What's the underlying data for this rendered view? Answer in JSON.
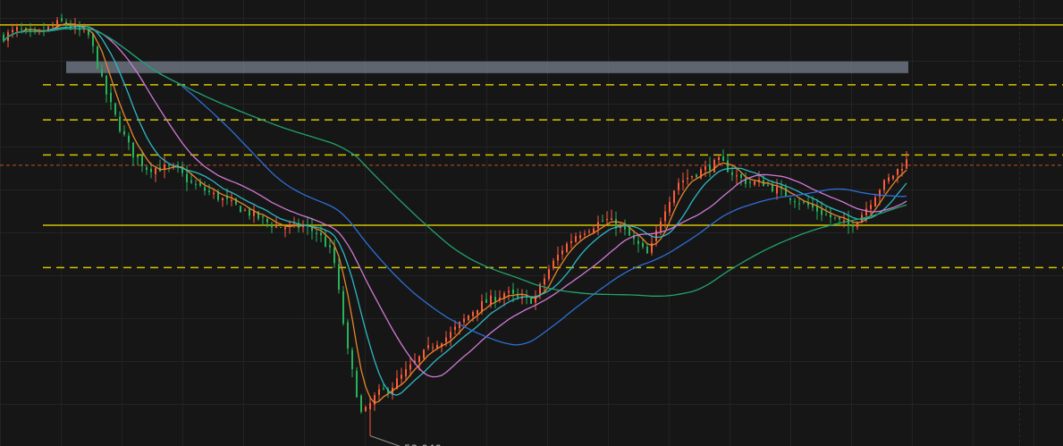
{
  "chart_data": {
    "type": "line",
    "chart_kind": "candlestick price chart with moving averages",
    "grid": true,
    "min_marker": {
      "label": "53.040",
      "value": 53.04
    },
    "horizontal_levels": [
      {
        "kind": "solid",
        "color": "#d4c400",
        "value": 58.66
      },
      {
        "kind": "dashed",
        "color": "#d4c400",
        "value": 57.84
      },
      {
        "kind": "dashed",
        "color": "#d4c400",
        "value": 57.36
      },
      {
        "kind": "dashed",
        "color": "#d4c400",
        "value": 56.88
      },
      {
        "kind": "solid",
        "color": "#d4c400",
        "value": 55.92
      },
      {
        "kind": "dashed",
        "color": "#d4c400",
        "value": 55.34
      },
      {
        "kind": "dashed",
        "color": "#c1502e",
        "value": 56.74
      }
    ],
    "zone": {
      "color": "#8a96a8",
      "from": 58.0,
      "to": 58.16
    },
    "moving_average_colors": [
      "#e8862a",
      "#2fb7c4",
      "#d07ad6",
      "#2e6fd8",
      "#21a36b"
    ],
    "candle_colors": {
      "up": "#ff5a3c",
      "down": "#27b35a"
    },
    "close_series": [
      58.5,
      58.6,
      58.5,
      58.6,
      58.7,
      58.6,
      58.5,
      57.8,
      57.3,
      56.9,
      56.7,
      56.7,
      56.7,
      56.5,
      56.4,
      56.3,
      56.2,
      56.1,
      56.0,
      55.9,
      55.9,
      55.9,
      55.8,
      55.5,
      54.2,
      53.3,
      53.6,
      53.7,
      53.9,
      54.1,
      54.3,
      54.4,
      54.6,
      54.8,
      54.9,
      55.0,
      54.9,
      54.9,
      55.3,
      55.6,
      55.8,
      55.9,
      56.0,
      55.9,
      55.7,
      55.5,
      56.1,
      56.5,
      56.6,
      56.7,
      56.8,
      56.6,
      56.5,
      56.5,
      56.4,
      56.3,
      56.2,
      56.1,
      56.0,
      55.9,
      56.1,
      56.4,
      56.6,
      56.8
    ],
    "ma_periods": [
      5,
      10,
      20,
      40,
      80
    ]
  }
}
